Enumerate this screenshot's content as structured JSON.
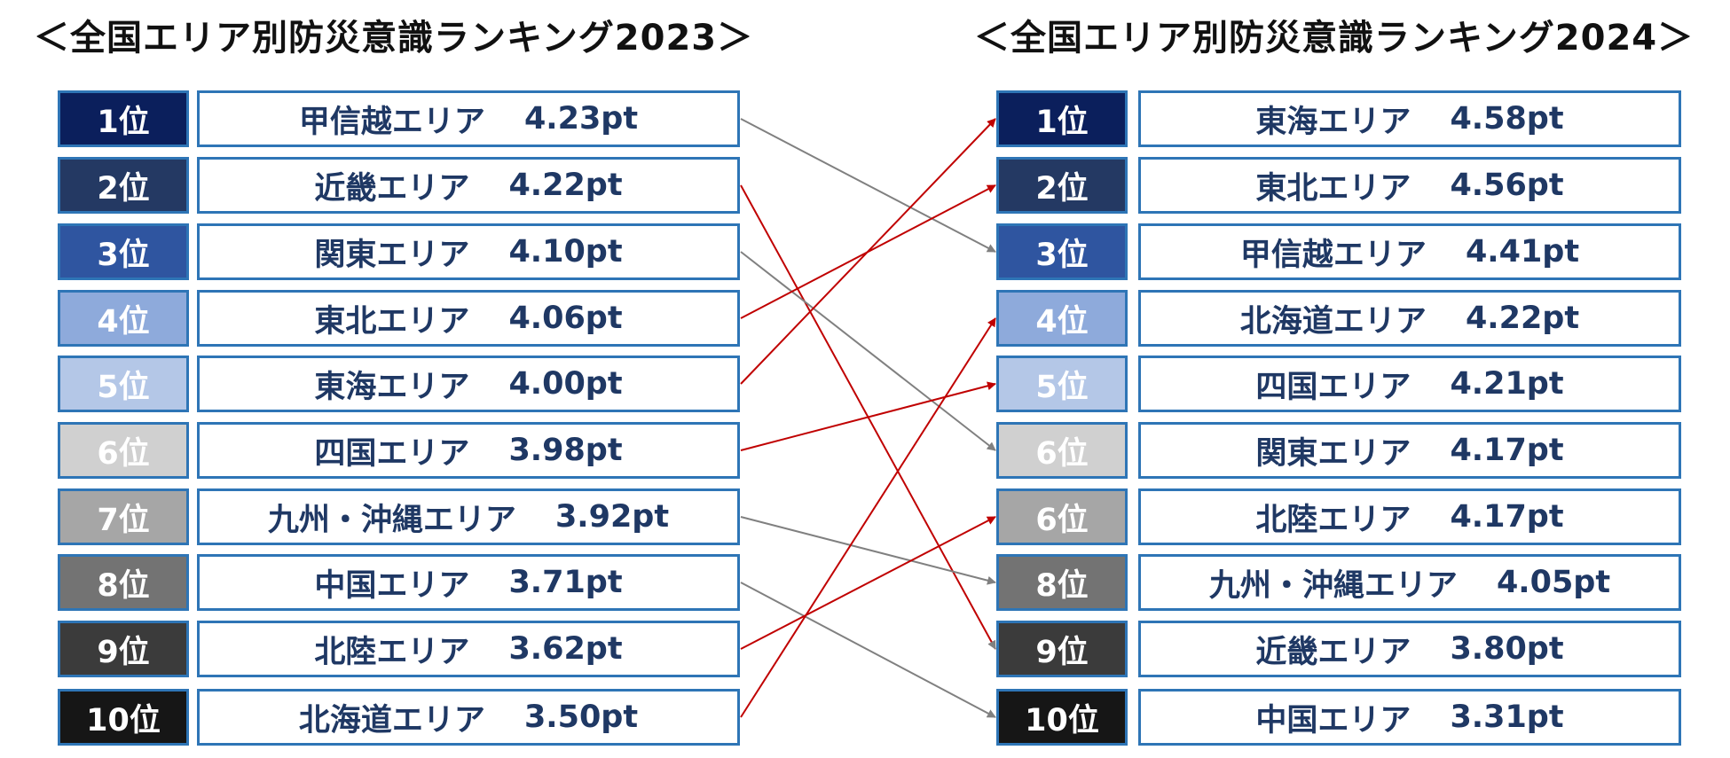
{
  "titles": {
    "left": "＜全国エリア別防災意識ランキング2023＞",
    "right": "＜全国エリア別防災意識ランキング2024＞"
  },
  "rank_colors": [
    "#0b1f5c",
    "#243963",
    "#2f55a0",
    "#8eaadb",
    "#b4c7e7",
    "#d0d0d0",
    "#a6a6a6",
    "#737373",
    "#3b3b3b",
    "#161616"
  ],
  "ranking_2023": [
    {
      "rank": "1位",
      "area": "甲信越エリア",
      "score": "4.23pt"
    },
    {
      "rank": "2位",
      "area": "近畿エリア",
      "score": "4.22pt"
    },
    {
      "rank": "3位",
      "area": "関東エリア",
      "score": "4.10pt"
    },
    {
      "rank": "4位",
      "area": "東北エリア",
      "score": "4.06pt"
    },
    {
      "rank": "5位",
      "area": "東海エリア",
      "score": "4.00pt"
    },
    {
      "rank": "6位",
      "area": "四国エリア",
      "score": "3.98pt"
    },
    {
      "rank": "7位",
      "area": "九州・沖縄エリア",
      "score": "3.92pt"
    },
    {
      "rank": "8位",
      "area": "中国エリア",
      "score": "3.71pt"
    },
    {
      "rank": "9位",
      "area": "北陸エリア",
      "score": "3.62pt"
    },
    {
      "rank": "10位",
      "area": "北海道エリア",
      "score": "3.50pt"
    }
  ],
  "ranking_2024": [
    {
      "rank": "1位",
      "area": "東海エリア",
      "score": "4.58pt"
    },
    {
      "rank": "2位",
      "area": "東北エリア",
      "score": "4.56pt"
    },
    {
      "rank": "3位",
      "area": "甲信越エリア",
      "score": "4.41pt"
    },
    {
      "rank": "4位",
      "area": "北海道エリア",
      "score": "4.22pt"
    },
    {
      "rank": "5位",
      "area": "四国エリア",
      "score": "4.21pt"
    },
    {
      "rank": "6位",
      "area": "関東エリア",
      "score": "4.17pt"
    },
    {
      "rank": "6位",
      "area": "北陸エリア",
      "score": "4.17pt"
    },
    {
      "rank": "8位",
      "area": "九州・沖縄エリア",
      "score": "4.05pt"
    },
    {
      "rank": "9位",
      "area": "近畿エリア",
      "score": "3.80pt"
    },
    {
      "rank": "10位",
      "area": "中国エリア",
      "score": "3.31pt"
    }
  ],
  "rank_changes": [
    {
      "from": 1,
      "to": 3,
      "direction": "down",
      "color": "#808080"
    },
    {
      "from": 2,
      "to": 9,
      "direction": "down",
      "color": "#c00000"
    },
    {
      "from": 3,
      "to": 6,
      "direction": "down",
      "color": "#808080"
    },
    {
      "from": 4,
      "to": 2,
      "direction": "up",
      "color": "#c00000"
    },
    {
      "from": 5,
      "to": 1,
      "direction": "up",
      "color": "#c00000"
    },
    {
      "from": 6,
      "to": 5,
      "direction": "up",
      "color": "#c00000"
    },
    {
      "from": 7,
      "to": 8,
      "direction": "down",
      "color": "#808080"
    },
    {
      "from": 8,
      "to": 10,
      "direction": "down",
      "color": "#808080"
    },
    {
      "from": 9,
      "to": 7,
      "direction": "up",
      "color": "#c00000"
    },
    {
      "from": 10,
      "to": 4,
      "direction": "up",
      "color": "#c00000"
    }
  ]
}
